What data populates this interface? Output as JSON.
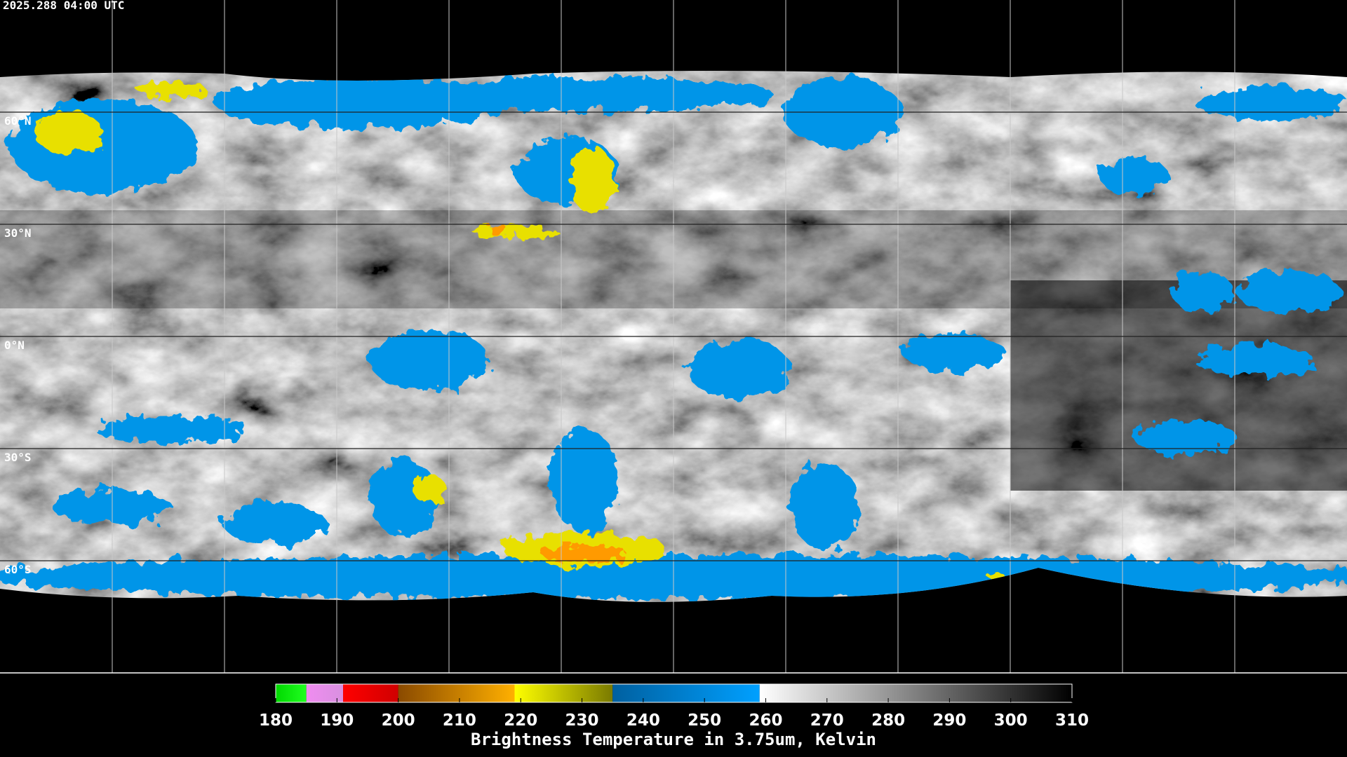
{
  "timestamp": "2025.288 04:00 UTC",
  "map": {
    "latitudes": [
      {
        "value": 60,
        "label": "60°N"
      },
      {
        "value": 30,
        "label": "30°N"
      },
      {
        "value": 0,
        "label": "0°N"
      },
      {
        "value": -30,
        "label": "30°S"
      },
      {
        "value": -60,
        "label": "60°S"
      }
    ],
    "latlim": [
      90,
      -90
    ]
  },
  "colorbar": {
    "title": "Brightness Temperature in 3.75um, Kelvin",
    "range": [
      180,
      310
    ],
    "ticks": [
      180,
      190,
      200,
      210,
      220,
      230,
      240,
      250,
      260,
      270,
      280,
      290,
      300,
      310
    ],
    "segments": [
      {
        "from": 180,
        "to": 185,
        "colors": [
          "#00d800",
          "#20ff20"
        ]
      },
      {
        "from": 185,
        "to": 191,
        "colors": [
          "#f08cf0",
          "#d890e0"
        ]
      },
      {
        "from": 191,
        "to": 200,
        "colors": [
          "#ff0000",
          "#d00000"
        ]
      },
      {
        "from": 200,
        "to": 219,
        "colors": [
          "#8a4a00",
          "#ffb000"
        ]
      },
      {
        "from": 219,
        "to": 235,
        "colors": [
          "#ffff00",
          "#7a7a00"
        ]
      },
      {
        "from": 235,
        "to": 259,
        "colors": [
          "#0060a0",
          "#00a0ff"
        ]
      },
      {
        "from": 259,
        "to": 310,
        "colors": [
          "#ffffff",
          "#000000"
        ]
      }
    ]
  }
}
